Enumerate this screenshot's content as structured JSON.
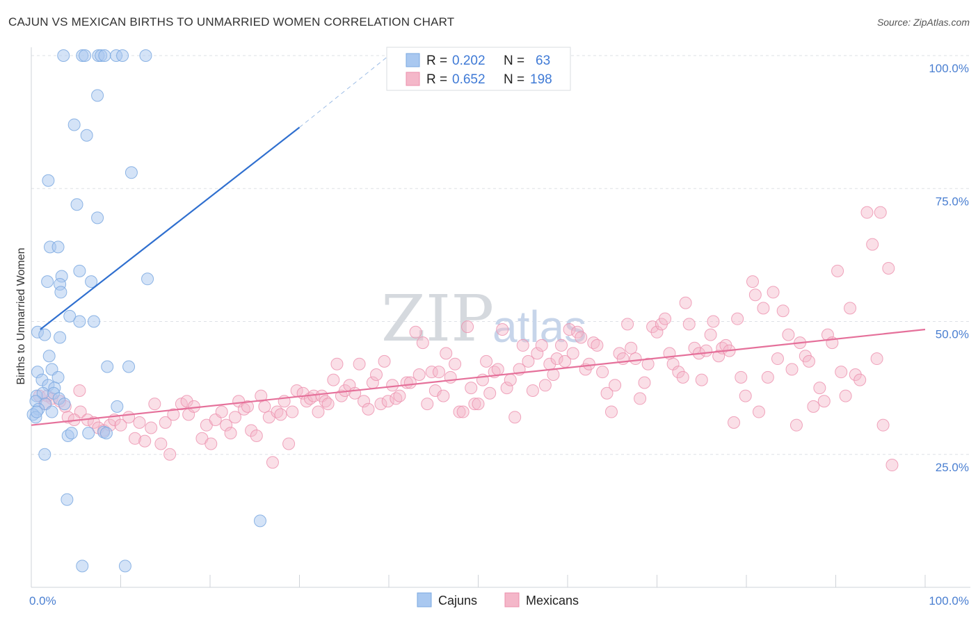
{
  "header": {
    "title": "CAJUN VS MEXICAN BIRTHS TO UNMARRIED WOMEN CORRELATION CHART",
    "source": "Source: ZipAtlas.com"
  },
  "watermark": {
    "zip": "ZIP",
    "atlas": "atlas"
  },
  "legend": {
    "rows": [
      {
        "r_label": "R = ",
        "r_value": "0.202",
        "n_label": "N = ",
        "n_value": "63",
        "color": "#a9c8f0"
      },
      {
        "r_label": "R = ",
        "r_value": "0.652",
        "n_label": "N = ",
        "n_value": "198",
        "color": "#f4b7c9"
      }
    ]
  },
  "bottom_legend": {
    "items": [
      "Cajuns",
      "Mexicans"
    ]
  },
  "colors": {
    "cajun_fill": "#a9c8f0",
    "cajun_stroke": "#7aa8e0",
    "cajun_line": "#2f6fcf",
    "mexican_fill": "#f4b7c9",
    "mexican_stroke": "#ec8fac",
    "mexican_line": "#e5709a",
    "tick_text": "#4a7fd1",
    "grid": "#dde1e6"
  },
  "chart_data": {
    "type": "scatter",
    "title": "CAJUN VS MEXICAN BIRTHS TO UNMARRIED WOMEN CORRELATION CHART",
    "xlabel": "",
    "ylabel": "Births to Unmarried Women",
    "xlim": [
      0,
      100
    ],
    "ylim": [
      0,
      100
    ],
    "x_tick_labels": [
      "0.0%",
      "100.0%"
    ],
    "y_ticks": [
      25,
      50,
      75,
      100
    ],
    "y_tick_labels": [
      "25.0%",
      "50.0%",
      "75.0%",
      "100.0%"
    ],
    "grid": true,
    "legend_position": "top-center",
    "series": [
      {
        "name": "Cajuns",
        "r": 0.202,
        "n": 63,
        "trend": {
          "x0": 1,
          "y0": 48.5,
          "x1": 30,
          "y1": 86.5,
          "dash_to_x": 40,
          "dash_to_y": 100
        },
        "points": [
          [
            3.6,
            100
          ],
          [
            5.7,
            100
          ],
          [
            6,
            100
          ],
          [
            7.5,
            100
          ],
          [
            7.8,
            100
          ],
          [
            8.2,
            100
          ],
          [
            9.5,
            100
          ],
          [
            10.2,
            100
          ],
          [
            12.8,
            100
          ],
          [
            7.4,
            92.5
          ],
          [
            4.8,
            87
          ],
          [
            6.2,
            85
          ],
          [
            11.2,
            78
          ],
          [
            1.9,
            76.5
          ],
          [
            5.1,
            72
          ],
          [
            7.4,
            69.5
          ],
          [
            2.1,
            64
          ],
          [
            3,
            64
          ],
          [
            3.4,
            58.5
          ],
          [
            5.4,
            59.5
          ],
          [
            1.8,
            57.5
          ],
          [
            3.2,
            57
          ],
          [
            6.7,
            57.5
          ],
          [
            13,
            58
          ],
          [
            3.3,
            55.5
          ],
          [
            4.3,
            51
          ],
          [
            5.4,
            50
          ],
          [
            7,
            50
          ],
          [
            0.7,
            48
          ],
          [
            1.5,
            47.5
          ],
          [
            3.2,
            47
          ],
          [
            2,
            43.5
          ],
          [
            8.5,
            41.5
          ],
          [
            10.9,
            41.5
          ],
          [
            2.3,
            41
          ],
          [
            0.7,
            40.5
          ],
          [
            3,
            39.5
          ],
          [
            1.2,
            39
          ],
          [
            1.9,
            38
          ],
          [
            2.6,
            37.5
          ],
          [
            0.6,
            36
          ],
          [
            1.3,
            36.5
          ],
          [
            2.5,
            36.5
          ],
          [
            3.1,
            35.5
          ],
          [
            0.5,
            35
          ],
          [
            1.6,
            34.5
          ],
          [
            3.7,
            34.5
          ],
          [
            9.6,
            34
          ],
          [
            0.8,
            33.5
          ],
          [
            2.3,
            33
          ],
          [
            0.2,
            32.5
          ],
          [
            0.5,
            32
          ],
          [
            0.6,
            33
          ],
          [
            4.1,
            28.5
          ],
          [
            4.5,
            29
          ],
          [
            6.4,
            29
          ],
          [
            8.1,
            29.2
          ],
          [
            8.4,
            29
          ],
          [
            1.5,
            25
          ],
          [
            4,
            16.5
          ],
          [
            25.6,
            12.5
          ],
          [
            5.7,
            4
          ],
          [
            10.5,
            4
          ]
        ]
      },
      {
        "name": "Mexicans",
        "r": 0.652,
        "n": 198,
        "trend": {
          "x0": 0,
          "y0": 30.5,
          "x1": 100,
          "y1": 48.5
        },
        "points": [
          [
            0.9,
            36
          ],
          [
            1.8,
            36
          ],
          [
            2.3,
            35.5
          ],
          [
            3.2,
            35
          ],
          [
            1.5,
            34.5
          ],
          [
            3.8,
            34
          ],
          [
            5.5,
            33
          ],
          [
            6.3,
            31.5
          ],
          [
            4.1,
            32
          ],
          [
            4.8,
            31.5
          ],
          [
            5.4,
            37
          ],
          [
            7,
            31
          ],
          [
            7.5,
            30
          ],
          [
            8.1,
            29.5
          ],
          [
            8.8,
            30.5
          ],
          [
            9.3,
            31.5
          ],
          [
            10,
            30.5
          ],
          [
            10.9,
            32
          ],
          [
            11.6,
            28
          ],
          [
            12.1,
            31
          ],
          [
            12.7,
            27.5
          ],
          [
            13.4,
            30
          ],
          [
            13.8,
            34.5
          ],
          [
            14.5,
            27
          ],
          [
            15,
            31
          ],
          [
            15.5,
            25
          ],
          [
            15.9,
            32.5
          ],
          [
            16.8,
            34.5
          ],
          [
            17.4,
            35
          ],
          [
            17.6,
            32.5
          ],
          [
            18.2,
            34
          ],
          [
            19.1,
            28
          ],
          [
            19.6,
            30.5
          ],
          [
            20.1,
            27
          ],
          [
            20.6,
            31.5
          ],
          [
            21.3,
            33
          ],
          [
            21.8,
            30.5
          ],
          [
            22.3,
            29
          ],
          [
            22.8,
            32
          ],
          [
            23.2,
            35
          ],
          [
            23.8,
            33.5
          ],
          [
            24.2,
            34
          ],
          [
            24.6,
            29.5
          ],
          [
            25.2,
            28.5
          ],
          [
            25.7,
            36
          ],
          [
            26.1,
            34
          ],
          [
            26.6,
            32
          ],
          [
            27,
            23.5
          ],
          [
            27.5,
            33
          ],
          [
            27.9,
            32.5
          ],
          [
            28.3,
            35
          ],
          [
            28.8,
            27
          ],
          [
            29.2,
            33
          ],
          [
            29.7,
            37
          ],
          [
            30.4,
            36.5
          ],
          [
            30.8,
            35
          ],
          [
            31.2,
            35.5
          ],
          [
            31.6,
            36
          ],
          [
            32.1,
            33
          ],
          [
            32.5,
            36
          ],
          [
            32.9,
            35
          ],
          [
            33.2,
            34.5
          ],
          [
            33.8,
            39
          ],
          [
            34.2,
            42
          ],
          [
            34.7,
            36
          ],
          [
            35.1,
            37
          ],
          [
            35.6,
            38
          ],
          [
            36.2,
            36.5
          ],
          [
            36.7,
            42
          ],
          [
            37.2,
            35
          ],
          [
            37.7,
            33.5
          ],
          [
            38.2,
            38.5
          ],
          [
            38.6,
            40
          ],
          [
            39.1,
            34.5
          ],
          [
            39.5,
            42.5
          ],
          [
            39.9,
            35
          ],
          [
            40.4,
            38
          ],
          [
            40.8,
            35.5
          ],
          [
            41.2,
            36
          ],
          [
            42,
            38.5
          ],
          [
            42.4,
            38.5
          ],
          [
            43,
            48
          ],
          [
            43.4,
            40
          ],
          [
            43.8,
            46
          ],
          [
            44.3,
            34.5
          ],
          [
            44.8,
            40.5
          ],
          [
            45.2,
            37
          ],
          [
            45.6,
            40.5
          ],
          [
            46.1,
            36
          ],
          [
            46.4,
            44
          ],
          [
            46.9,
            39.5
          ],
          [
            47.4,
            42
          ],
          [
            47.9,
            33
          ],
          [
            48.3,
            33
          ],
          [
            48.8,
            49
          ],
          [
            49.2,
            37.5
          ],
          [
            49.6,
            34.5
          ],
          [
            50,
            34.5
          ],
          [
            50.5,
            39
          ],
          [
            50.9,
            42.5
          ],
          [
            51.3,
            36.5
          ],
          [
            51.8,
            40.5
          ],
          [
            52.2,
            41
          ],
          [
            52.7,
            48.5
          ],
          [
            53.2,
            37.5
          ],
          [
            53.6,
            39
          ],
          [
            54.1,
            32
          ],
          [
            54.6,
            41
          ],
          [
            55,
            45.5
          ],
          [
            55.6,
            42.5
          ],
          [
            56.1,
            37
          ],
          [
            56.6,
            44
          ],
          [
            57.1,
            45.5
          ],
          [
            57.5,
            38
          ],
          [
            58,
            42
          ],
          [
            58.4,
            40
          ],
          [
            58.8,
            43
          ],
          [
            59.3,
            45.5
          ],
          [
            59.7,
            42.5
          ],
          [
            60.2,
            48.5
          ],
          [
            60.6,
            44
          ],
          [
            61.1,
            48
          ],
          [
            61.5,
            47
          ],
          [
            62,
            41
          ],
          [
            62.4,
            42
          ],
          [
            62.9,
            46
          ],
          [
            63.3,
            45.5
          ],
          [
            63.9,
            40.5
          ],
          [
            64.4,
            36.5
          ],
          [
            64.9,
            33
          ],
          [
            65.3,
            38
          ],
          [
            65.8,
            44
          ],
          [
            66.2,
            43
          ],
          [
            66.7,
            49.5
          ],
          [
            67.1,
            45
          ],
          [
            67.6,
            43
          ],
          [
            68.1,
            35.5
          ],
          [
            68.6,
            38.5
          ],
          [
            69,
            42
          ],
          [
            69.5,
            49
          ],
          [
            70,
            48
          ],
          [
            70.5,
            49.5
          ],
          [
            70.9,
            50.5
          ],
          [
            71.4,
            44
          ],
          [
            71.8,
            42
          ],
          [
            72.4,
            40.5
          ],
          [
            72.9,
            39.5
          ],
          [
            73.2,
            53.5
          ],
          [
            73.6,
            49.5
          ],
          [
            74.2,
            45
          ],
          [
            74.7,
            44
          ],
          [
            75,
            39
          ],
          [
            75.5,
            44.5
          ],
          [
            76,
            47.5
          ],
          [
            76.3,
            50
          ],
          [
            76.9,
            43.5
          ],
          [
            77.3,
            45
          ],
          [
            77.7,
            45.5
          ],
          [
            78.1,
            44.5
          ],
          [
            78.6,
            31
          ],
          [
            79,
            50.5
          ],
          [
            79.4,
            39.5
          ],
          [
            79.9,
            36
          ],
          [
            80.7,
            57.5
          ],
          [
            81,
            55
          ],
          [
            81.4,
            33
          ],
          [
            81.9,
            52.5
          ],
          [
            82.4,
            39.5
          ],
          [
            83,
            55.5
          ],
          [
            83.5,
            43
          ],
          [
            84.1,
            52
          ],
          [
            84.7,
            47.5
          ],
          [
            85.1,
            41
          ],
          [
            85.6,
            30.5
          ],
          [
            86,
            46
          ],
          [
            86.6,
            43.5
          ],
          [
            87,
            42.5
          ],
          [
            87.5,
            34
          ],
          [
            88.2,
            37.5
          ],
          [
            88.7,
            35
          ],
          [
            89.1,
            47.5
          ],
          [
            89.6,
            46
          ],
          [
            90.2,
            59.5
          ],
          [
            90.6,
            40.5
          ],
          [
            91.1,
            36
          ],
          [
            91.6,
            52.5
          ],
          [
            92.2,
            40
          ],
          [
            92.7,
            39
          ],
          [
            93.5,
            70.5
          ],
          [
            94.1,
            64.5
          ],
          [
            94.6,
            43
          ],
          [
            95,
            70.5
          ],
          [
            95.3,
            30.5
          ],
          [
            95.9,
            60
          ],
          [
            96.3,
            23
          ]
        ]
      }
    ]
  }
}
